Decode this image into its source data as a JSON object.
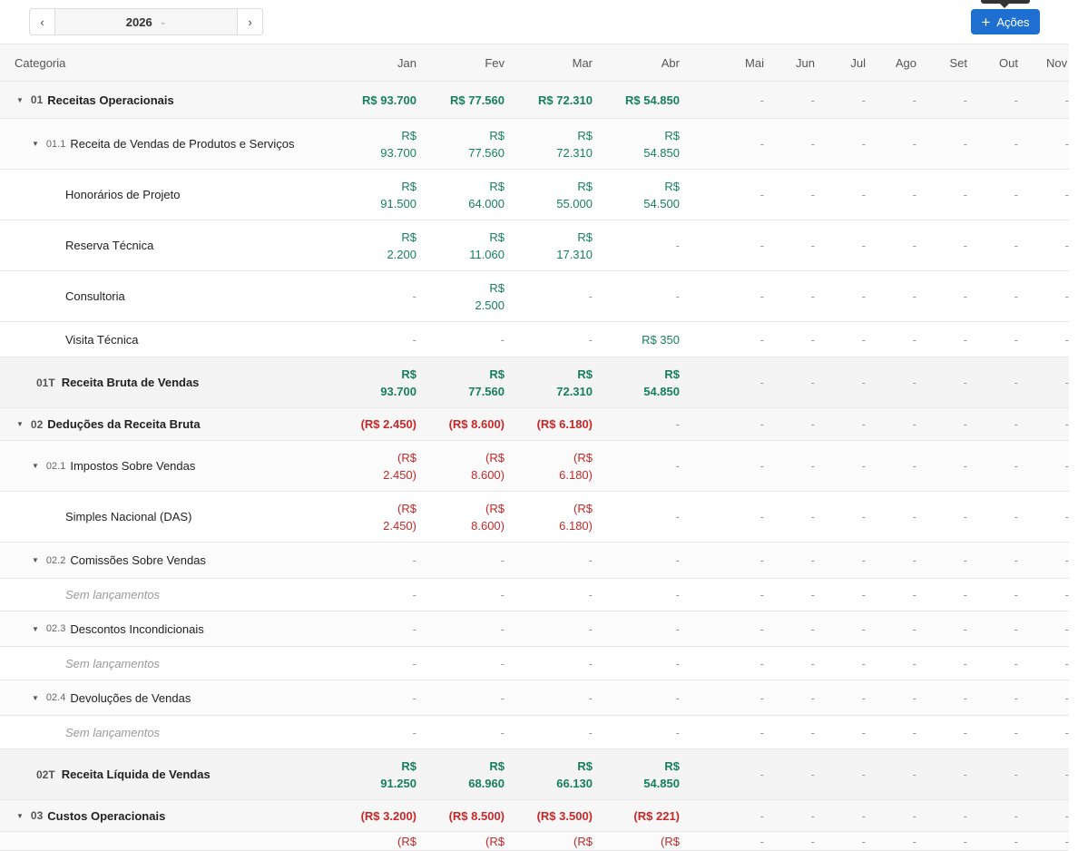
{
  "toolbar": {
    "year": "2026",
    "prev_label": "‹",
    "next_label": "›",
    "actions_label": "Ações",
    "actions_icon": "plus-icon",
    "accent": "#1f6fd1"
  },
  "colors": {
    "positive": "#17805b",
    "negative": "#c62828"
  },
  "table": {
    "columns": [
      "Categoria",
      "Jan",
      "Fev",
      "Mar",
      "Abr",
      "Mai",
      "Jun",
      "Jul",
      "Ago",
      "Set",
      "Out",
      "Nov"
    ],
    "rows": [
      {
        "type": "group",
        "code": "01",
        "name": "Receitas Operacionais",
        "values": [
          "R$ 93.700",
          "R$ 77.560",
          "R$ 72.310",
          "R$ 54.850",
          "-",
          "-",
          "-",
          "-",
          "-",
          "-",
          "-"
        ]
      },
      {
        "type": "sub",
        "code": "01.1",
        "name": "Receita de Vendas de Produtos e Serviços",
        "values": [
          "R$ 93.700",
          "R$ 77.560",
          "R$ 72.310",
          "R$ 54.850",
          "-",
          "-",
          "-",
          "-",
          "-",
          "-",
          "-"
        ]
      },
      {
        "type": "leaf",
        "name": "Honorários de Projeto",
        "values": [
          "R$ 91.500",
          "R$ 64.000",
          "R$ 55.000",
          "R$ 54.500",
          "-",
          "-",
          "-",
          "-",
          "-",
          "-",
          "-"
        ]
      },
      {
        "type": "leaf",
        "name": "Reserva Técnica",
        "values": [
          "R$ 2.200",
          "R$ 11.060",
          "R$ 17.310",
          "-",
          "-",
          "-",
          "-",
          "-",
          "-",
          "-",
          "-"
        ]
      },
      {
        "type": "leaf",
        "name": "Consultoria",
        "values": [
          "-",
          "R$ 2.500",
          "-",
          "-",
          "-",
          "-",
          "-",
          "-",
          "-",
          "-",
          "-"
        ]
      },
      {
        "type": "leaf",
        "name": "Visita Técnica",
        "values": [
          "-",
          "-",
          "-",
          "R$ 350",
          "-",
          "-",
          "-",
          "-",
          "-",
          "-",
          "-"
        ]
      },
      {
        "type": "total",
        "code": "01T",
        "name": "Receita Bruta de Vendas",
        "values": [
          "R$ 93.700",
          "R$ 77.560",
          "R$ 72.310",
          "R$ 54.850",
          "-",
          "-",
          "-",
          "-",
          "-",
          "-",
          "-"
        ]
      },
      {
        "type": "group",
        "code": "02",
        "name": "Deduções da Receita Bruta",
        "values": [
          "(R$ 2.450)",
          "(R$ 8.600)",
          "(R$ 6.180)",
          "-",
          "-",
          "-",
          "-",
          "-",
          "-",
          "-",
          "-"
        ]
      },
      {
        "type": "sub",
        "code": "02.1",
        "name": "Impostos Sobre Vendas",
        "values": [
          "(R$ 2.450)",
          "(R$ 8.600)",
          "(R$ 6.180)",
          "-",
          "-",
          "-",
          "-",
          "-",
          "-",
          "-",
          "-"
        ]
      },
      {
        "type": "leaf",
        "name": "Simples Nacional (DAS)",
        "values": [
          "(R$ 2.450)",
          "(R$ 8.600)",
          "(R$ 6.180)",
          "-",
          "-",
          "-",
          "-",
          "-",
          "-",
          "-",
          "-"
        ]
      },
      {
        "type": "sub",
        "code": "02.2",
        "name": "Comissões Sobre Vendas",
        "values": [
          "-",
          "-",
          "-",
          "-",
          "-",
          "-",
          "-",
          "-",
          "-",
          "-",
          "-"
        ]
      },
      {
        "type": "empty",
        "name": "Sem lançamentos",
        "values": [
          "-",
          "-",
          "-",
          "-",
          "-",
          "-",
          "-",
          "-",
          "-",
          "-",
          "-"
        ]
      },
      {
        "type": "sub",
        "code": "02.3",
        "name": "Descontos Incondicionais",
        "values": [
          "-",
          "-",
          "-",
          "-",
          "-",
          "-",
          "-",
          "-",
          "-",
          "-",
          "-"
        ]
      },
      {
        "type": "empty",
        "name": "Sem lançamentos",
        "values": [
          "-",
          "-",
          "-",
          "-",
          "-",
          "-",
          "-",
          "-",
          "-",
          "-",
          "-"
        ]
      },
      {
        "type": "sub",
        "code": "02.4",
        "name": "Devoluções de Vendas",
        "values": [
          "-",
          "-",
          "-",
          "-",
          "-",
          "-",
          "-",
          "-",
          "-",
          "-",
          "-"
        ]
      },
      {
        "type": "empty",
        "name": "Sem lançamentos",
        "values": [
          "-",
          "-",
          "-",
          "-",
          "-",
          "-",
          "-",
          "-",
          "-",
          "-",
          "-"
        ]
      },
      {
        "type": "total",
        "code": "02T",
        "name": "Receita Líquida de Vendas",
        "values": [
          "R$ 91.250",
          "R$ 68.960",
          "R$ 66.130",
          "R$ 54.850",
          "-",
          "-",
          "-",
          "-",
          "-",
          "-",
          "-"
        ]
      },
      {
        "type": "group",
        "code": "03",
        "name": "Custos Operacionais",
        "values": [
          "(R$ 3.200)",
          "(R$ 8.500)",
          "(R$ 3.500)",
          "(R$ 221)",
          "-",
          "-",
          "-",
          "-",
          "-",
          "-",
          "-"
        ]
      },
      {
        "type": "sub",
        "code": "",
        "name": "",
        "values": [
          "(R$",
          "(R$",
          "(R$",
          "(R$",
          "-",
          "-",
          "-",
          "-",
          "-",
          "-",
          "-"
        ]
      }
    ]
  }
}
